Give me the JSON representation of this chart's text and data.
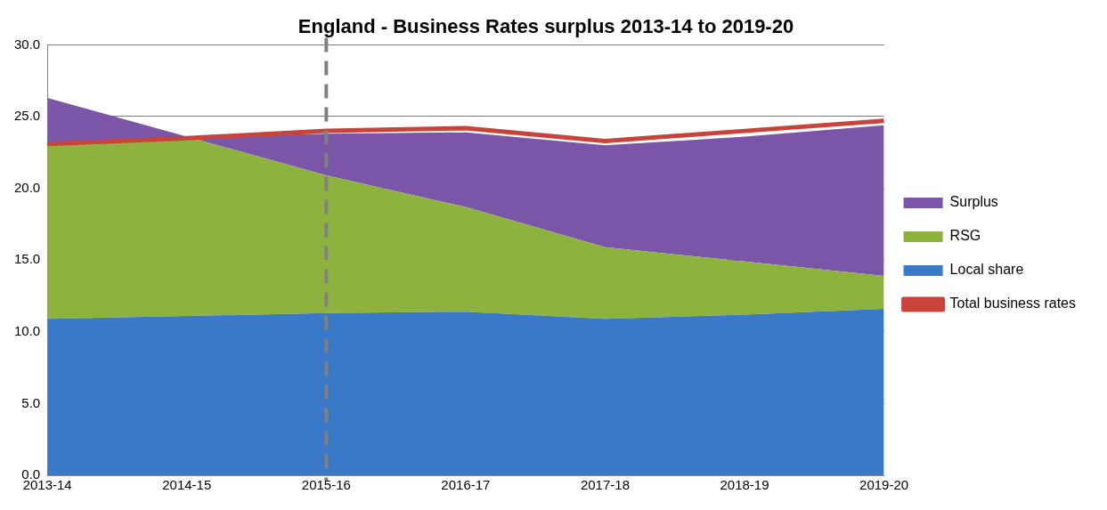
{
  "chart_data": {
    "type": "area",
    "title": "England - Business Rates surplus 2013-14 to 2019-20",
    "categories": [
      "2013-14",
      "2014-15",
      "2015-16",
      "2016-17",
      "2017-18",
      "2018-19",
      "2019-20"
    ],
    "stacked": true,
    "series": [
      {
        "name": "Local share",
        "color": "#3a78c8",
        "values": [
          10.9,
          11.1,
          11.3,
          11.4,
          10.9,
          11.2,
          11.6
        ]
      },
      {
        "name": "RSG",
        "color": "#8db33e",
        "values": [
          12.1,
          12.5,
          9.6,
          7.3,
          5.0,
          3.7,
          2.3
        ]
      },
      {
        "name": "Surplus",
        "color": "#7a55a8",
        "values": [
          3.3,
          0,
          2.9,
          5.2,
          7.1,
          8.7,
          10.5
        ]
      },
      {
        "name": "Total business rates",
        "type": "line",
        "color": "#c8443a",
        "values": [
          23.1,
          23.5,
          24.0,
          24.2,
          23.3,
          24.0,
          24.7
        ]
      }
    ],
    "ylim": [
      0,
      30
    ],
    "yticks": [
      {
        "value": 0,
        "label": "0.0"
      },
      {
        "value": 5,
        "label": "5.0"
      },
      {
        "value": 10,
        "label": "10.0"
      },
      {
        "value": 15,
        "label": "15.0"
      },
      {
        "value": 20,
        "label": "20.0"
      },
      {
        "value": 25,
        "label": "25.0"
      },
      {
        "value": 30,
        "label": "30.0"
      }
    ],
    "grid": "y",
    "legend": "right",
    "ref_lines": [
      {
        "axis": "x",
        "value": "2015-16",
        "color": "#808080",
        "line_style": "dashed"
      }
    ]
  }
}
